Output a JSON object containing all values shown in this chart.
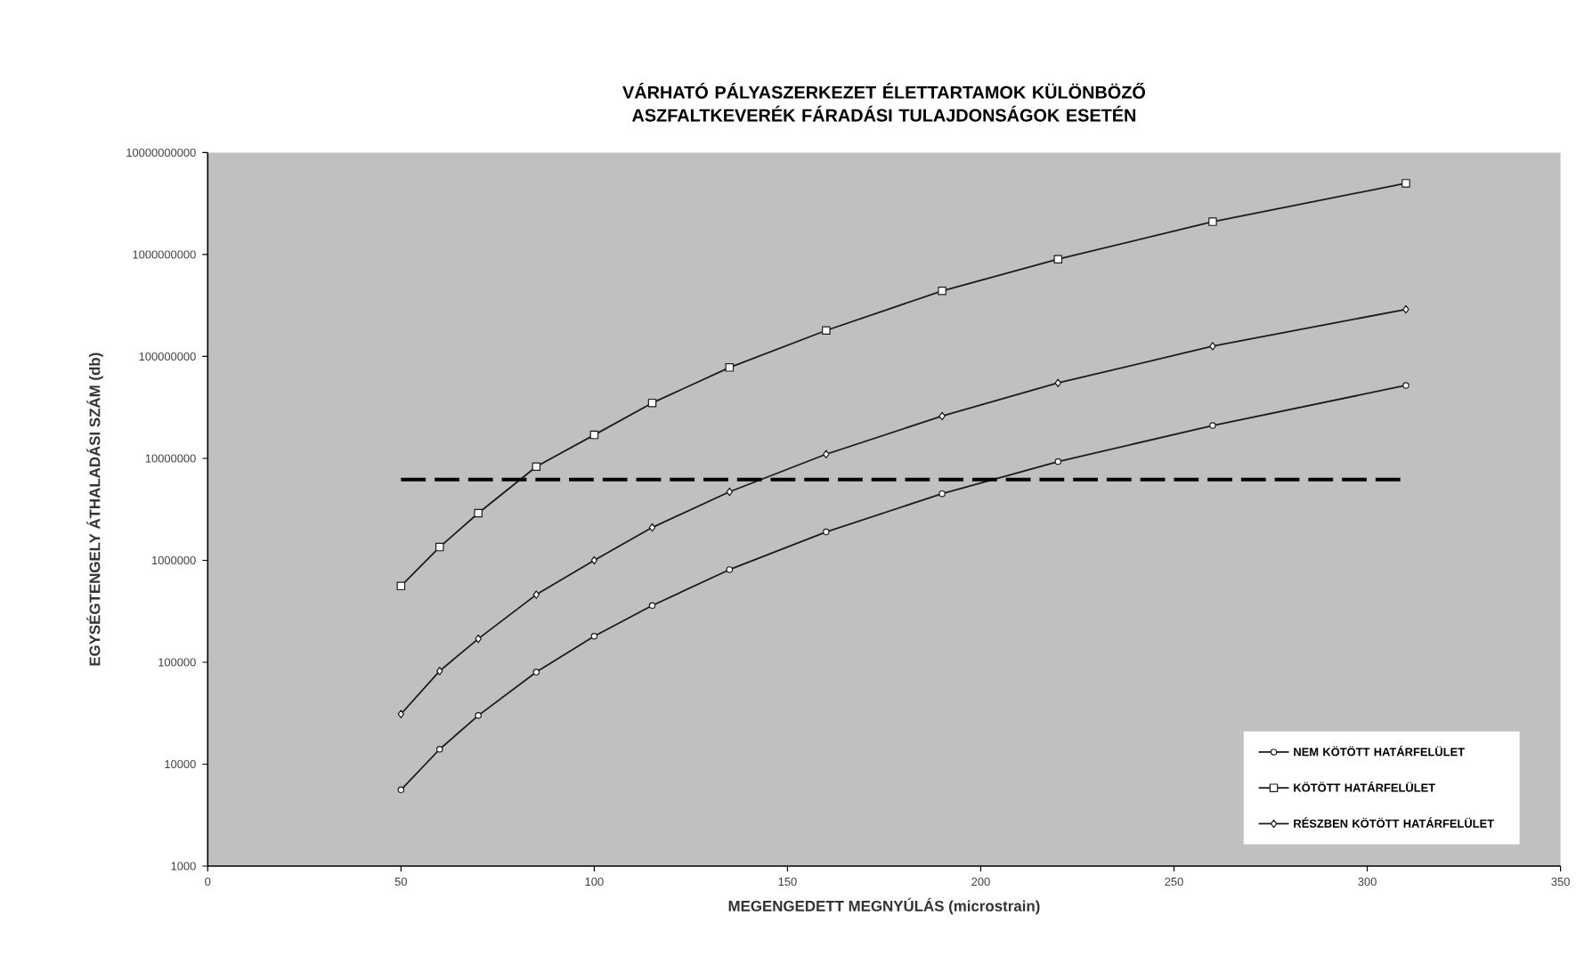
{
  "chart_data": {
    "type": "line",
    "title": "VÁRHATÓ PÁLYASZERKEZET ÉLETTARTAMOK KÜLÖNBÖZŐ ASZFALTKEVERÉK FÁRADÁSI TULAJDONSÁGOK ESETÉN",
    "xlabel": "MEGENGEDETT MEGNYÚLÁS (microstrain)",
    "ylabel": "EGYSÉGTENGELY ÁTHALADÁSI SZÁM (db)",
    "x": [
      50,
      60,
      70,
      85,
      100,
      115,
      135,
      160,
      190,
      220,
      260,
      310
    ],
    "series": [
      {
        "name": "NEM KÖTÖTT HATÁRFELÜLET",
        "color": "#1a1a1a",
        "marker": "circle",
        "values": [
          5600,
          14000,
          30000,
          80000,
          180000,
          360000,
          810000,
          1900000,
          4500000,
          9300000,
          21000000,
          52000000
        ]
      },
      {
        "name": "KÖTÖTT HATÁRFELÜLET",
        "color": "#1a1a1a",
        "marker": "square",
        "values": [
          560000,
          1350000,
          2900000,
          8300000,
          17000000,
          35000000,
          78000000,
          180000000,
          440000000,
          900000000,
          2100000000,
          5000000000
        ]
      },
      {
        "name": "RÉSZBEN KÖTÖTT HATÁRFELÜLET",
        "color": "#1a1a1a",
        "marker": "diamond",
        "values": [
          31000,
          82000,
          170000,
          460000,
          1000000,
          2100000,
          4700000,
          11000000,
          26000000,
          55000000,
          126000000,
          290000000
        ]
      },
      {
        "x": [
          50,
          310
        ],
        "color": "#000000",
        "marker": "none",
        "line_style": "dashed",
        "values": [
          6200000,
          6200000
        ]
      }
    ],
    "xlim": [
      0,
      350
    ],
    "xticks": [
      0,
      50,
      100,
      150,
      200,
      250,
      300,
      350
    ],
    "ylim": [
      1000,
      10000000000
    ],
    "yticks": [
      1000,
      10000,
      100000,
      1000000,
      10000000,
      100000000,
      1000000000,
      10000000000
    ],
    "log": "y",
    "grid": false,
    "legend": "bottom right",
    "line_style": "solid"
  }
}
